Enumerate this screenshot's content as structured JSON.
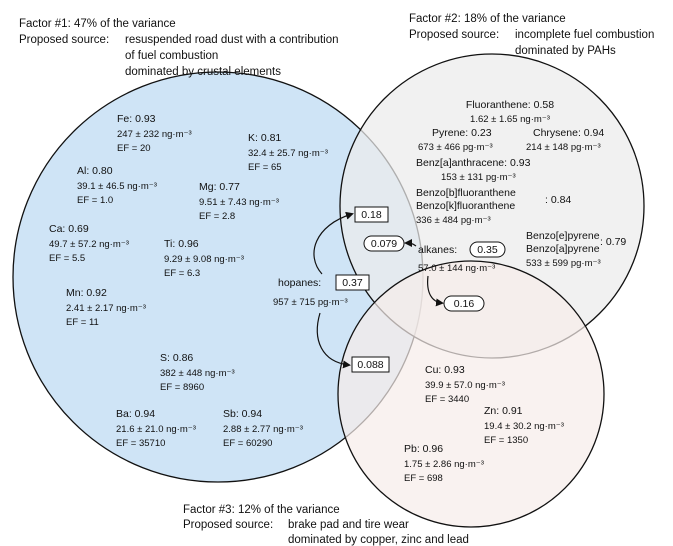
{
  "factors": [
    {
      "id": "f1",
      "title": "Factor #1: 47% of the variance",
      "source_label": "Proposed source:",
      "source_lines": [
        "resuspended road dust with a contribution",
        "of fuel combustion",
        "dominated by crustal elements"
      ],
      "color": "#cfe4f6"
    },
    {
      "id": "f2",
      "title": "Factor #2: 18% of the variance",
      "source_label": "Proposed source:",
      "source_lines": [
        "incomplete fuel combustion",
        "dominated by PAHs"
      ],
      "color": "#ececec"
    },
    {
      "id": "f3",
      "title": "Factor #3: 12% of the variance",
      "source_label": "Proposed source:",
      "source_lines": [
        "brake pad and tire wear",
        "dominated by copper, zinc and lead"
      ],
      "color": "#f7ecea"
    }
  ],
  "factor1_elements": [
    {
      "name": "Fe: 0.93",
      "conc": "247 ± 232 ng·m⁻³",
      "ef": "EF = 20"
    },
    {
      "name": "K: 0.81",
      "conc": "32.4 ± 25.7 ng·m⁻³",
      "ef": "EF = 65"
    },
    {
      "name": "Al: 0.80",
      "conc": "39.1 ± 46.5 ng·m⁻³",
      "ef": "EF = 1.0"
    },
    {
      "name": "Mg: 0.77",
      "conc": "9.51 ± 7.43 ng·m⁻³",
      "ef": "EF = 2.8"
    },
    {
      "name": "Ca: 0.69",
      "conc": "49.7 ± 57.2 ng·m⁻³",
      "ef": "EF = 5.5"
    },
    {
      "name": "Ti: 0.96",
      "conc": "9.29 ± 9.08 ng·m⁻³",
      "ef": "EF = 6.3"
    },
    {
      "name": "Mn: 0.92",
      "conc": "2.41 ± 2.17 ng·m⁻³",
      "ef": "EF = 11"
    },
    {
      "name": "S: 0.86",
      "conc": "382 ± 448 ng·m⁻³",
      "ef": "EF = 8960"
    },
    {
      "name": "Ba: 0.94",
      "conc": "21.6 ± 21.0 ng·m⁻³",
      "ef": "EF = 35710"
    },
    {
      "name": "Sb: 0.94",
      "conc": "2.88 ± 2.77 ng·m⁻³",
      "ef": "EF = 60290"
    }
  ],
  "factor2_compounds": [
    {
      "name": "Fluoranthene: 0.58",
      "conc": "1.62 ± 1.65 ng·m⁻³"
    },
    {
      "name": "Pyrene: 0.23",
      "conc": "673 ± 466 pg·m⁻³"
    },
    {
      "name": "Chrysene: 0.94",
      "conc": "214 ± 148 pg·m⁻³"
    },
    {
      "name": "Benz[a]anthracene: 0.93",
      "conc": "153 ± 131 pg·m⁻³"
    },
    {
      "name1": "Benzo[b]fluoranthene",
      "name2": "Benzo[k]fluoranthene",
      "loading": ": 0.84",
      "conc": "336 ± 484 pg·m⁻³"
    },
    {
      "name1": "Benzo[e]pyrene",
      "name2": "Benzo[a]pyrene",
      "loading": ": 0.79",
      "conc": "533 ± 599 pg·m⁻³"
    }
  ],
  "factor3_elements": [
    {
      "name": "Cu: 0.93",
      "conc": "39.9 ± 57.0 ng·m⁻³",
      "ef": "EF = 3440"
    },
    {
      "name": "Zn: 0.91",
      "conc": "19.4 ± 30.2 ng·m⁻³",
      "ef": "EF = 1350"
    },
    {
      "name": "Pb: 0.96",
      "conc": "1.75 ± 2.86 ng·m⁻³",
      "ef": "EF = 698"
    }
  ],
  "hopanes": {
    "label": "hopanes:",
    "loading": "0.37",
    "conc": "957 ± 715 pg·m⁻³",
    "shared_f2": "0.18",
    "shared_f3": "0.088"
  },
  "alkanes": {
    "label": "alkanes:",
    "loading": "0.35",
    "conc": "57.0 ± 144 ng·m⁻³",
    "shared_f1": "0.079",
    "shared_f3": "0.16"
  }
}
